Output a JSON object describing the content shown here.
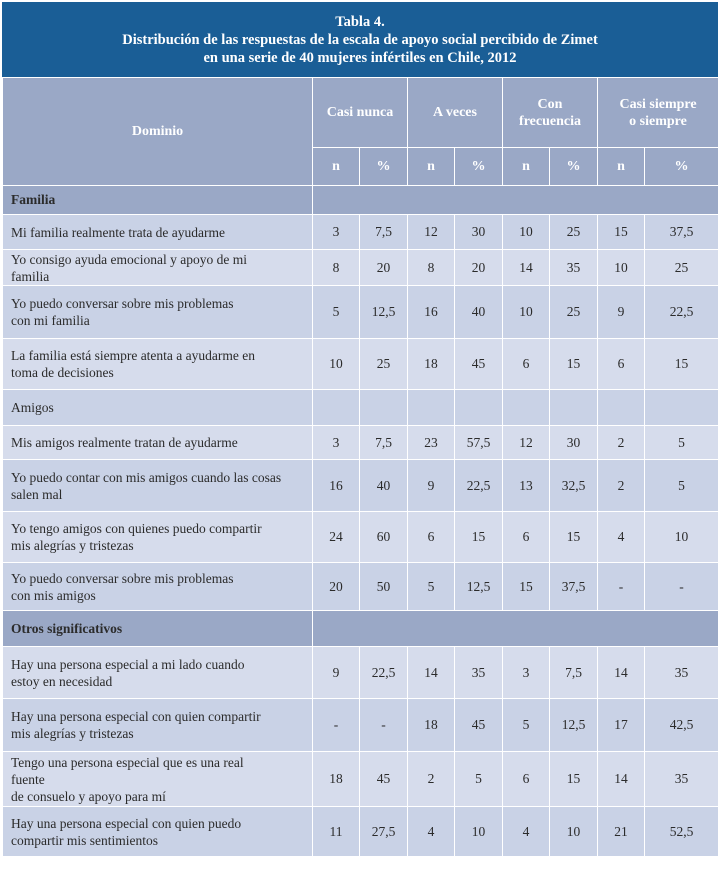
{
  "title": {
    "line1": "Tabla 4.",
    "line2": "Distribución de las respuestas de la escala de apoyo social percibido de Zimet",
    "line3": "en una serie de 40 mujeres infértiles en Chile, 2012"
  },
  "header": {
    "dominio": "Dominio",
    "groups": [
      "Casi nunca",
      "A veces",
      "Con frecuencia",
      "Casi siempre o siempre"
    ],
    "group_lines": [
      [
        "Casi nunca"
      ],
      [
        "A veces"
      ],
      [
        "Con",
        "frecuencia"
      ],
      [
        "Casi siempre",
        "o siempre"
      ]
    ],
    "n": "n",
    "pct": "%"
  },
  "sections": [
    {
      "name": "Familia",
      "bold": true,
      "rows": [
        {
          "label_lines": [
            "Mi familia realmente trata de ayudarme"
          ],
          "values": [
            "3",
            "7,5",
            "12",
            "30",
            "10",
            "25",
            "15",
            "37,5"
          ]
        },
        {
          "label_lines": [
            "Yo consigo ayuda emocional y apoyo de mi",
            "familia"
          ],
          "values": [
            "8",
            "20",
            "8",
            "20",
            "14",
            "35",
            "10",
            "25"
          ]
        },
        {
          "label_lines": [
            "Yo puedo conversar sobre mis problemas",
            "con mi familia"
          ],
          "values": [
            "5",
            "12,5",
            "16",
            "40",
            "10",
            "25",
            "9",
            "22,5"
          ]
        },
        {
          "label_lines": [
            "La familia está siempre atenta a ayudarme en",
            "toma de decisiones"
          ],
          "values": [
            "10",
            "25",
            "18",
            "45",
            "6",
            "15",
            "6",
            "15"
          ]
        }
      ]
    },
    {
      "name": "Amigos",
      "bold": false,
      "rows": [
        {
          "label_lines": [
            "Mis amigos realmente tratan de ayudarme"
          ],
          "values": [
            "3",
            "7,5",
            "23",
            "57,5",
            "12",
            "30",
            "2",
            "5"
          ]
        },
        {
          "label_lines": [
            "Yo puedo contar con mis amigos cuando las cosas",
            "salen mal"
          ],
          "values": [
            "16",
            "40",
            "9",
            "22,5",
            "13",
            "32,5",
            "2",
            "5"
          ]
        },
        {
          "label_lines": [
            "Yo tengo amigos con quienes puedo compartir",
            "mis alegrías y tristezas"
          ],
          "values": [
            "24",
            "60",
            "6",
            "15",
            "6",
            "15",
            "4",
            "10"
          ]
        },
        {
          "label_lines": [
            "Yo puedo conversar sobre mis problemas",
            "con mis amigos"
          ],
          "values": [
            "20",
            "50",
            "5",
            "12,5",
            "15",
            "37,5",
            "-",
            "-"
          ]
        }
      ]
    },
    {
      "name": "Otros significativos",
      "bold": true,
      "rows": [
        {
          "label_lines": [
            "Hay una persona especial a mi lado cuando",
            "estoy en necesidad"
          ],
          "values": [
            "9",
            "22,5",
            "14",
            "35",
            "3",
            "7,5",
            "14",
            "35"
          ]
        },
        {
          "label_lines": [
            "Hay una persona especial con quien compartir",
            "mis alegrías y tristezas"
          ],
          "values": [
            "-",
            "-",
            "18",
            "45",
            "5",
            "12,5",
            "17",
            "42,5"
          ]
        },
        {
          "label_lines": [
            "Tengo una persona especial que es una real",
            "fuente",
            "de consuelo y apoyo para mí"
          ],
          "values": [
            "18",
            "45",
            "2",
            "5",
            "6",
            "15",
            "14",
            "35"
          ]
        },
        {
          "label_lines": [
            "Hay una persona especial con quien puedo",
            "compartir mis sentimientos"
          ],
          "values": [
            "11",
            "27,5",
            "4",
            "10",
            "4",
            "10",
            "21",
            "52,5"
          ]
        }
      ]
    }
  ],
  "colors": {
    "title_bg": "#1a5e96",
    "header_bg": "#9aa8c6",
    "row_bg": "#c9d2e6",
    "row_alt_bg": "#d6dcec"
  }
}
